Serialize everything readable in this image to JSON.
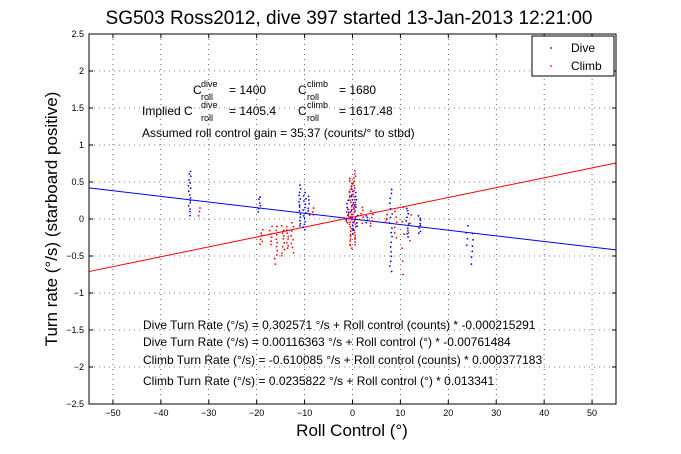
{
  "chart_data": {
    "type": "scatter",
    "title": "SG503 Ross2012, dive 397 started 13-Jan-2013 12:21:00",
    "xlabel": "Roll Control (°)",
    "ylabel": "Turn rate (°/s) (starboard positive)",
    "xlim": [
      -55,
      55
    ],
    "ylim": [
      -2.5,
      2.5
    ],
    "xticks": [
      -50,
      -40,
      -30,
      -20,
      -10,
      0,
      10,
      20,
      30,
      40,
      50
    ],
    "yticks": [
      -2.5,
      -2,
      -1.5,
      -1,
      -0.5,
      0,
      0.5,
      1,
      1.5,
      2,
      2.5
    ],
    "grid": "dotted",
    "legend_position": "top-right",
    "series": [
      {
        "name": "Dive",
        "color": "#0000ff",
        "fit": {
          "intercept": 0.00116363,
          "slope": -0.00761484
        },
        "clusters": [
          {
            "x": -34,
            "ymin": 0.05,
            "ymax": 0.65,
            "n": 16
          },
          {
            "x": -19.5,
            "ymin": 0.1,
            "ymax": 0.3,
            "n": 6
          },
          {
            "x": -11,
            "ymin": -0.1,
            "ymax": 0.45,
            "n": 14
          },
          {
            "x": -10,
            "ymin": -0.15,
            "ymax": 0.35,
            "n": 14
          },
          {
            "x": -9,
            "ymin": 0.05,
            "ymax": 0.3,
            "n": 6
          },
          {
            "x": -1,
            "ymin": -0.05,
            "ymax": 0.25,
            "n": 8
          },
          {
            "x": 0,
            "ymin": -0.2,
            "ymax": 0.45,
            "n": 18
          },
          {
            "x": 0.8,
            "ymin": -0.1,
            "ymax": 0.35,
            "n": 10
          },
          {
            "x": 3,
            "ymin": -0.05,
            "ymax": 0.05,
            "n": 4
          },
          {
            "x": 8,
            "ymin": -0.7,
            "ymax": 0.4,
            "n": 18
          },
          {
            "x": 11.5,
            "ymin": -0.25,
            "ymax": 0.15,
            "n": 10
          },
          {
            "x": 14,
            "ymin": -0.2,
            "ymax": 0.05,
            "n": 8
          },
          {
            "x": 24,
            "ymin": -0.35,
            "ymax": -0.1,
            "n": 4
          },
          {
            "x": 25,
            "ymin": -0.6,
            "ymax": -0.2,
            "n": 6
          }
        ]
      },
      {
        "name": "Climb",
        "color": "#ff0000",
        "fit": {
          "intercept": 0.0235822,
          "slope": 0.013341
        },
        "clusters": [
          {
            "x": -32,
            "ymin": 0.05,
            "ymax": 0.15,
            "n": 3
          },
          {
            "x": -19,
            "ymin": -0.35,
            "ymax": -0.15,
            "n": 6
          },
          {
            "x": -17,
            "ymin": -0.35,
            "ymax": -0.1,
            "n": 6
          },
          {
            "x": -16,
            "ymin": -0.6,
            "ymax": -0.1,
            "n": 10
          },
          {
            "x": -14.5,
            "ymin": -0.5,
            "ymax": -0.1,
            "n": 10
          },
          {
            "x": -13.5,
            "ymin": -0.4,
            "ymax": -0.1,
            "n": 8
          },
          {
            "x": -12.5,
            "ymin": -0.45,
            "ymax": -0.05,
            "n": 8
          },
          {
            "x": -8,
            "ymin": 0.05,
            "ymax": 0.15,
            "n": 3
          },
          {
            "x": -1,
            "ymin": -0.05,
            "ymax": 0.1,
            "n": 6
          },
          {
            "x": -0.4,
            "ymin": -0.4,
            "ymax": 0.55,
            "n": 30
          },
          {
            "x": 0.4,
            "ymin": -0.35,
            "ymax": 0.65,
            "n": 30
          },
          {
            "x": 2,
            "ymin": -0.05,
            "ymax": 0.15,
            "n": 6
          },
          {
            "x": 4,
            "ymin": -0.1,
            "ymax": 0.1,
            "n": 6
          },
          {
            "x": 7,
            "ymin": -0.05,
            "ymax": 0.05,
            "n": 4
          },
          {
            "x": 9,
            "ymin": -0.25,
            "ymax": 0.1,
            "n": 6
          },
          {
            "x": 10.5,
            "ymin": -0.75,
            "ymax": 0.15,
            "n": 6
          },
          {
            "x": 12,
            "ymin": -0.3,
            "ymax": 0.05,
            "n": 4
          }
        ]
      }
    ],
    "fit_lines": [
      {
        "series": "Dive",
        "color": "#0000ff",
        "intercept": 0.00116363,
        "slope": -0.00761484
      },
      {
        "series": "Climb",
        "color": "#ff0000",
        "intercept": 0.0235822,
        "slope": 0.013341
      }
    ]
  },
  "annotations": {
    "croll_dive": "C",
    "croll_dive_sup": "dive",
    "croll_dive_sub": "roll",
    "croll_dive_val": "= 1400",
    "croll_climb": "C",
    "croll_climb_sup": "climb",
    "croll_climb_sub": "roll",
    "croll_climb_val": "= 1680",
    "implied_prefix": "Implied C",
    "implied_dive_sup": "dive",
    "implied_dive_sub": "roll",
    "implied_dive_val": "= 1405.4",
    "implied_climb": "C",
    "implied_climb_sup": "climb",
    "implied_climb_sub": "roll",
    "implied_climb_val": "= 1617.48",
    "assumed_gain": "Assumed roll control gain = 35.37 (counts/° to stbd)",
    "fit1": "Dive Turn Rate (°/s) = 0.302571 °/s + Roll control (counts) * -0.000215291",
    "fit2": "Dive Turn Rate (°/s) = 0.00116363 °/s + Roll control (°) * -0.00761484",
    "fit3": "Climb Turn Rate (°/s) = -0.610085 °/s + Roll control (counts) * 0.000377183",
    "fit4": "Climb Turn Rate (°/s) = 0.0235822 °/s + Roll control (°) * 0.013341"
  },
  "legend": {
    "dive_label": "Dive",
    "climb_label": "Climb"
  }
}
